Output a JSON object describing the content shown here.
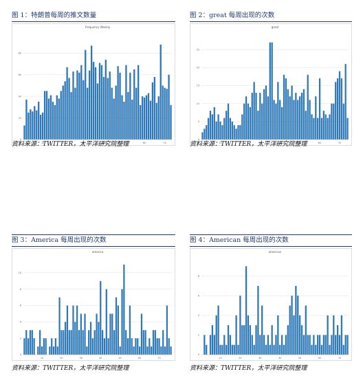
{
  "colors": {
    "bar": "#2b77b7",
    "title": "#1f3a6d",
    "grid": "#e6e6e6"
  },
  "source_text": "资料来源：TWITTER，太平洋研究院整理",
  "charts": [
    {
      "label": "图 1：特朗普每周的推文数量",
      "chart_data": {
        "type": "bar",
        "title": "Frequency Weekly",
        "xlabel": "",
        "ylabel": "",
        "ylim": [
          0,
          100
        ],
        "yticks": [
          0,
          20,
          40,
          60,
          80
        ],
        "xticks": [
          10,
          20,
          30,
          40,
          50,
          60,
          70
        ],
        "grid": true,
        "values": [
          13,
          37,
          25,
          28,
          26,
          31,
          27,
          35,
          23,
          25,
          45,
          45,
          38,
          41,
          35,
          32,
          41,
          38,
          45,
          50,
          54,
          67,
          57,
          44,
          63,
          48,
          64,
          62,
          69,
          55,
          83,
          48,
          64,
          87,
          72,
          67,
          52,
          71,
          69,
          58,
          74,
          57,
          63,
          48,
          38,
          50,
          68,
          62,
          41,
          35,
          69,
          44,
          62,
          37,
          65,
          48,
          69,
          32,
          40,
          39,
          41,
          43,
          36,
          53,
          58,
          34,
          40,
          88,
          50,
          48,
          47,
          60,
          32
        ]
      }
    },
    {
      "label": "图 2：great 每周出现的次数",
      "chart_data": {
        "type": "bar",
        "title": "great",
        "xlabel": "",
        "ylabel": "",
        "ylim": [
          0,
          30
        ],
        "yticks": [
          0,
          5,
          10,
          15,
          20,
          25
        ],
        "xticks": [
          10,
          20,
          30,
          40,
          50,
          60,
          70
        ],
        "grid": true,
        "values": [
          2,
          3,
          4,
          6,
          8,
          7,
          9,
          5,
          7,
          5,
          4,
          6,
          8,
          10,
          6,
          5,
          4,
          3,
          4,
          4,
          7,
          10,
          12,
          10,
          9,
          13,
          16,
          13,
          8,
          13,
          10,
          14,
          15,
          12,
          27,
          27,
          11,
          10,
          16,
          11,
          9,
          18,
          17,
          14,
          12,
          15,
          11,
          13,
          11,
          12,
          13,
          14,
          8,
          18,
          11,
          7,
          6,
          12,
          6,
          17,
          6,
          8,
          7,
          6,
          7,
          10,
          10,
          16,
          17,
          19,
          17,
          10,
          21,
          6
        ]
      }
    },
    {
      "label": "图 3：America 每周出现的次数",
      "chart_data": {
        "type": "bar",
        "title": "america",
        "xlabel": "",
        "ylabel": "",
        "ylim": [
          0,
          12
        ],
        "yticks": [
          0,
          2,
          4,
          6,
          8,
          10
        ],
        "xticks": [
          10,
          20,
          30,
          40,
          50,
          60,
          70
        ],
        "grid": true,
        "values": [
          2,
          3,
          2,
          3,
          3,
          2,
          0,
          1,
          3,
          1,
          2,
          2,
          0,
          1,
          2,
          1,
          2,
          1,
          7,
          3,
          3,
          4,
          6,
          3,
          3,
          6,
          4,
          6,
          3,
          5,
          3,
          5,
          1,
          3,
          4,
          2,
          3,
          5,
          4,
          9,
          3,
          2,
          8,
          2,
          5,
          5,
          3,
          7,
          6,
          1,
          8,
          11,
          3,
          2,
          6,
          2,
          1,
          2,
          2,
          1,
          5,
          3,
          3,
          1,
          2,
          1,
          3,
          3,
          2,
          2,
          1,
          3,
          1,
          6,
          2,
          1
        ]
      }
    },
    {
      "label": "图 4：American 每周出现的次数",
      "chart_data": {
        "type": "bar",
        "title": "american",
        "xlabel": "",
        "ylabel": "",
        "ylim": [
          0,
          10
        ],
        "yticks": [
          0,
          2,
          4,
          6,
          8
        ],
        "xticks": [
          10,
          20,
          30,
          40,
          50,
          60,
          70
        ],
        "grid": true,
        "values": [
          0,
          2,
          1,
          0,
          2,
          3,
          2,
          4,
          5,
          1,
          1,
          2,
          1,
          3,
          2,
          1,
          1,
          4,
          1,
          6,
          3,
          3,
          9,
          4,
          3,
          2,
          1,
          3,
          7,
          2,
          5,
          2,
          1,
          2,
          1,
          3,
          1,
          2,
          4,
          1,
          2,
          1,
          2,
          3,
          5,
          6,
          4,
          7,
          6,
          4,
          3,
          2,
          5,
          2,
          2,
          1,
          2,
          1,
          2,
          2,
          1,
          2,
          2,
          4,
          1,
          2,
          4,
          2,
          3,
          2,
          4,
          1,
          2,
          2
        ]
      }
    }
  ]
}
